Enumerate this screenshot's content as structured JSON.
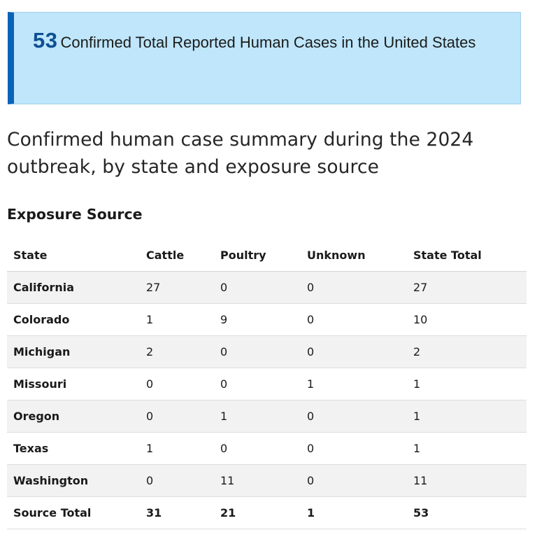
{
  "callout": {
    "number": "53",
    "text": "Confirmed Total Reported Human Cases in the United States"
  },
  "summary_heading": "Confirmed human case summary during the 2024 outbreak, by state and exposure source",
  "table_caption": "Exposure Source",
  "table": {
    "headers": [
      "State",
      "Cattle",
      "Poultry",
      "Unknown",
      "State Total"
    ],
    "rows": [
      [
        "California",
        "27",
        "0",
        "0",
        "27"
      ],
      [
        "Colorado",
        "1",
        "9",
        "0",
        "10"
      ],
      [
        "Michigan",
        "2",
        "0",
        "0",
        "2"
      ],
      [
        "Missouri",
        "0",
        "0",
        "1",
        "1"
      ],
      [
        "Oregon",
        "0",
        "1",
        "0",
        "1"
      ],
      [
        "Texas",
        "1",
        "0",
        "0",
        "1"
      ],
      [
        "Washington",
        "0",
        "11",
        "0",
        "11"
      ]
    ],
    "footer": [
      "Source Total",
      "31",
      "21",
      "1",
      "53"
    ]
  },
  "colors": {
    "callout_background": "#bfe6fb",
    "callout_accent": "#0b63b8",
    "callout_number": "#0f4f91",
    "row_stripe": "#f2f2f2"
  }
}
